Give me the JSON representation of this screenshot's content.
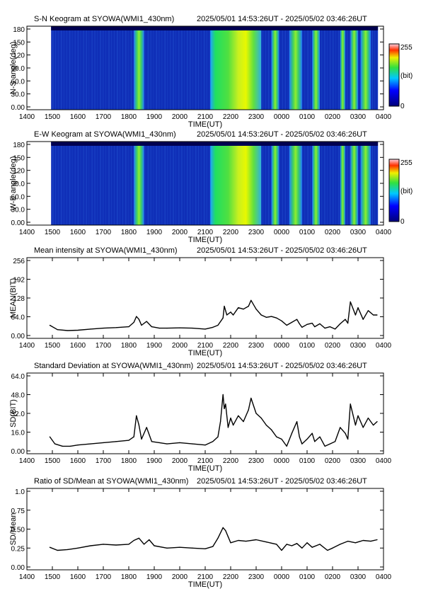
{
  "figure": {
    "time_range": "2025/05/01 14:53:26UT - 2025/05/02 03:46:26UT",
    "x_ticks": [
      "1400",
      "1500",
      "1600",
      "1700",
      "1800",
      "1900",
      "2000",
      "2100",
      "2200",
      "2300",
      "0000",
      "0100",
      "0200",
      "0300",
      "0400"
    ],
    "x_label": "TIME(UT)",
    "colorbar": {
      "max_label": "255",
      "unit_label": "(bit)",
      "min_label": "0"
    }
  },
  "chart_data": [
    {
      "type": "heatmap",
      "title": "S-N Keogram at SYOWA(WMI1_430nm)",
      "time_range": "2025/05/01 14:53:26UT - 2025/05/02 03:46:26UT",
      "ylabel": "N-S angle(deg)",
      "y_ticks": [
        "180",
        "150",
        "120",
        "90.0",
        "60.0",
        "30.0",
        "0.00"
      ],
      "xlabel": "TIME(UT)",
      "ylim": [
        0,
        180
      ],
      "colorbar": [
        0,
        255
      ],
      "bright_bands_hours": [
        [
          18.2,
          18.6
        ],
        [
          21.2,
          23.2
        ],
        [
          23.6,
          23.9
        ],
        [
          24.3,
          24.8
        ],
        [
          25.2,
          25.5
        ],
        [
          26.3,
          26.5
        ],
        [
          26.7,
          27.0
        ],
        [
          27.1,
          27.5
        ]
      ]
    },
    {
      "type": "heatmap",
      "title": "E-W Keogram at SYOWA(WMI1_430nm)",
      "time_range": "2025/05/01 14:53:26UT - 2025/05/02 03:46:26UT",
      "ylabel": "W-E angle(deg)",
      "y_ticks": [
        "180",
        "150",
        "120",
        "90.0",
        "60.0",
        "30.0",
        "0.00"
      ],
      "xlabel": "TIME(UT)",
      "ylim": [
        0,
        180
      ],
      "colorbar": [
        0,
        255
      ],
      "bright_bands_hours": [
        [
          18.2,
          18.6
        ],
        [
          21.2,
          23.2
        ],
        [
          23.6,
          23.9
        ],
        [
          24.3,
          24.8
        ],
        [
          25.2,
          25.5
        ],
        [
          26.3,
          26.5
        ],
        [
          26.7,
          27.0
        ],
        [
          27.1,
          27.5
        ]
      ]
    },
    {
      "type": "line",
      "title": "Mean intensity at SYOWA(WMI1_430nm)",
      "time_range": "2025/05/01 14:53:26UT - 2025/05/02 03:46:26UT",
      "ylabel": "MEAN(BIT)",
      "y_ticks": [
        "256",
        "192",
        "128",
        "64.0",
        "0.00"
      ],
      "xlabel": "TIME(UT)",
      "ylim": [
        0,
        256
      ],
      "x": [
        14.9,
        15.2,
        15.6,
        16.0,
        16.5,
        17.0,
        17.5,
        18.0,
        18.2,
        18.3,
        18.4,
        18.5,
        18.7,
        18.9,
        19.2,
        19.5,
        20.0,
        20.5,
        21.0,
        21.3,
        21.5,
        21.7,
        21.75,
        21.85,
        22.0,
        22.1,
        22.3,
        22.5,
        22.7,
        22.8,
        23.0,
        23.2,
        23.4,
        23.6,
        23.8,
        24.0,
        24.2,
        24.4,
        24.6,
        24.7,
        24.8,
        25.0,
        25.2,
        25.3,
        25.5,
        25.7,
        25.9,
        26.1,
        26.3,
        26.5,
        26.6,
        26.7,
        26.9,
        27.0,
        27.2,
        27.4,
        27.6,
        27.75
      ],
      "y": [
        35,
        20,
        17,
        18,
        22,
        25,
        27,
        30,
        45,
        65,
        55,
        35,
        48,
        30,
        25,
        25,
        26,
        25,
        22,
        28,
        35,
        60,
        100,
        70,
        80,
        70,
        95,
        90,
        100,
        120,
        90,
        70,
        62,
        65,
        60,
        50,
        35,
        45,
        55,
        40,
        28,
        38,
        42,
        30,
        40,
        25,
        30,
        22,
        40,
        55,
        42,
        115,
        70,
        95,
        55,
        85,
        70,
        70
      ]
    },
    {
      "type": "line",
      "title": "Standard Deviation at SYOWA(WMI1_430nm)",
      "time_range": "2025/05/01 14:53:26UT - 2025/05/02 03:46:26UT",
      "ylabel": "SD(BIT)",
      "y_ticks": [
        "64.0",
        "48.0",
        "32.0",
        "16.0",
        "0.00"
      ],
      "xlabel": "TIME(UT)",
      "ylim": [
        0,
        64
      ],
      "x": [
        14.9,
        15.1,
        15.4,
        15.7,
        16.0,
        16.5,
        17.0,
        17.5,
        18.0,
        18.2,
        18.3,
        18.4,
        18.5,
        18.7,
        18.9,
        19.2,
        19.5,
        20.0,
        20.5,
        21.0,
        21.3,
        21.5,
        21.6,
        21.7,
        21.75,
        21.8,
        21.9,
        22.0,
        22.1,
        22.3,
        22.5,
        22.7,
        22.8,
        23.0,
        23.2,
        23.4,
        23.6,
        23.8,
        24.0,
        24.2,
        24.4,
        24.6,
        24.7,
        24.8,
        25.0,
        25.2,
        25.3,
        25.5,
        25.7,
        25.9,
        26.1,
        26.3,
        26.5,
        26.6,
        26.7,
        26.9,
        27.0,
        27.2,
        27.4,
        27.6,
        27.75
      ],
      "y": [
        12,
        6,
        4,
        4,
        5,
        6,
        7,
        8,
        9,
        12,
        30,
        22,
        10,
        20,
        8,
        7,
        6,
        7,
        6,
        5,
        8,
        12,
        25,
        48,
        36,
        40,
        20,
        28,
        22,
        30,
        25,
        35,
        45,
        32,
        28,
        22,
        18,
        12,
        10,
        4,
        15,
        25,
        12,
        6,
        10,
        15,
        8,
        12,
        4,
        6,
        8,
        20,
        15,
        10,
        40,
        22,
        30,
        20,
        28,
        22,
        25
      ]
    },
    {
      "type": "line",
      "title": "Ratio of SD/Mean at SYOWA(WMI1_430nm)",
      "time_range": "2025/05/01 14:53:26UT - 2025/05/02 03:46:26UT",
      "ylabel": "SD/Mean",
      "y_ticks": [
        "1.0",
        "0.75",
        "0.50",
        "0.25",
        "0.00"
      ],
      "xlabel": "TIME(UT)",
      "ylim": [
        0,
        1.0
      ],
      "x": [
        14.9,
        15.2,
        15.6,
        16.0,
        16.5,
        17.0,
        17.5,
        18.0,
        18.2,
        18.4,
        18.6,
        18.8,
        19.0,
        19.5,
        20.0,
        20.5,
        21.0,
        21.3,
        21.5,
        21.7,
        21.8,
        21.9,
        22.0,
        22.3,
        22.6,
        23.0,
        23.4,
        23.8,
        24.0,
        24.2,
        24.4,
        24.6,
        24.8,
        25.0,
        25.2,
        25.5,
        25.8,
        26.0,
        26.3,
        26.6,
        26.9,
        27.2,
        27.5,
        27.75
      ],
      "y": [
        0.26,
        0.22,
        0.23,
        0.25,
        0.28,
        0.3,
        0.29,
        0.3,
        0.35,
        0.38,
        0.3,
        0.36,
        0.28,
        0.25,
        0.26,
        0.25,
        0.24,
        0.27,
        0.38,
        0.52,
        0.48,
        0.4,
        0.32,
        0.35,
        0.34,
        0.36,
        0.33,
        0.3,
        0.22,
        0.3,
        0.28,
        0.31,
        0.25,
        0.32,
        0.26,
        0.3,
        0.22,
        0.25,
        0.3,
        0.34,
        0.32,
        0.35,
        0.34,
        0.36
      ]
    }
  ]
}
